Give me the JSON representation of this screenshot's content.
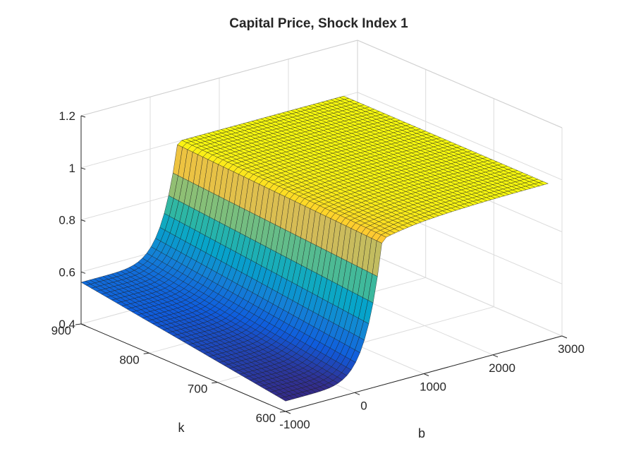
{
  "chart_data": {
    "type": "surface",
    "title": "Capital Price, Shock Index 1",
    "xlabel": "b",
    "ylabel": "k",
    "zlabel": "",
    "xlim": [
      -1000,
      3000
    ],
    "ylim": [
      600,
      900
    ],
    "zlim": [
      0.4,
      1.2
    ],
    "x_ticks": [
      -1000,
      0,
      1000,
      2000,
      3000
    ],
    "y_ticks": [
      600,
      700,
      800,
      900
    ],
    "z_ticks": [
      0.4,
      0.6,
      0.8,
      1,
      1.2
    ],
    "x_tick_labels": [
      "-1000",
      "0",
      "1000",
      "2000",
      "3000"
    ],
    "y_tick_labels": [
      "600",
      "700",
      "800",
      "900"
    ],
    "z_tick_labels": [
      "0.4",
      "0.6",
      "0.8",
      "1",
      "1.2"
    ],
    "grid": true,
    "colormap": "parula",
    "surface_x_range": [
      -1000,
      2800
    ],
    "surface_y_range": [
      600,
      900
    ],
    "samples": [
      {
        "b": -1000,
        "k": 600,
        "price": 0.44
      },
      {
        "b": -1000,
        "k": 900,
        "price": 0.56
      },
      {
        "b": 400,
        "k": 600,
        "price": 0.96
      },
      {
        "b": 400,
        "k": 900,
        "price": 1.0
      },
      {
        "b": 2800,
        "k": 600,
        "price": 1.0
      },
      {
        "b": 2800,
        "k": 900,
        "price": 1.0
      }
    ]
  }
}
